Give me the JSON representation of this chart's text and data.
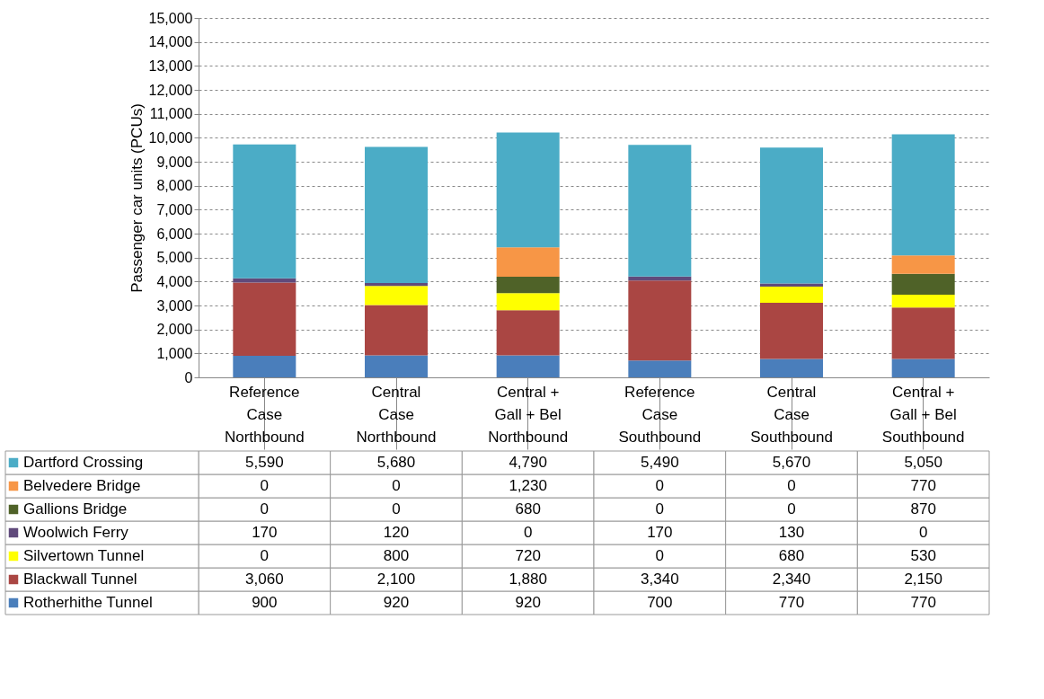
{
  "chart_data": {
    "type": "bar",
    "stacked": true,
    "ylabel": "Passenger car units (PCUs)",
    "categories": [
      "Reference Case Northbound",
      "Central Case Northbound",
      "Central + Gall + Bel Northbound",
      "Reference Case Southbound",
      "Central Case Southbound",
      "Central + Gall + Bel Southbound"
    ],
    "series": [
      {
        "name": "Rotherhithe Tunnel",
        "color": "#4a7ebb",
        "values": [
          900,
          920,
          920,
          700,
          770,
          770
        ],
        "value_labels": [
          "900",
          "920",
          "920",
          "700",
          "770",
          "770"
        ]
      },
      {
        "name": "Blackwall Tunnel",
        "color": "#aa4643",
        "values": [
          3060,
          2100,
          1880,
          3340,
          2340,
          2150
        ],
        "value_labels": [
          "3,060",
          "2,100",
          "1,880",
          "3,340",
          "2,340",
          "2,150"
        ]
      },
      {
        "name": "Silvertown Tunnel",
        "color": "#ffff00",
        "values": [
          0,
          800,
          720,
          0,
          680,
          530
        ],
        "value_labels": [
          "0",
          "800",
          "720",
          "0",
          "680",
          "530"
        ]
      },
      {
        "name": "Woolwich Ferry",
        "color": "#604a7b",
        "values": [
          170,
          120,
          0,
          170,
          130,
          0
        ],
        "value_labels": [
          "170",
          "120",
          "0",
          "170",
          "130",
          "0"
        ]
      },
      {
        "name": "Gallions Bridge",
        "color": "#4f6228",
        "values": [
          0,
          0,
          680,
          0,
          0,
          870
        ],
        "value_labels": [
          "0",
          "0",
          "680",
          "0",
          "0",
          "870"
        ]
      },
      {
        "name": "Belvedere Bridge",
        "color": "#f79646",
        "values": [
          0,
          0,
          1230,
          0,
          0,
          770
        ],
        "value_labels": [
          "0",
          "0",
          "1,230",
          "0",
          "0",
          "770"
        ]
      },
      {
        "name": "Dartford Crossing",
        "color": "#4bacc6",
        "values": [
          5590,
          5680,
          4790,
          5490,
          5670,
          5050
        ],
        "value_labels": [
          "5,590",
          "5,680",
          "4,790",
          "5,490",
          "5,670",
          "5,050"
        ]
      }
    ],
    "ylim": [
      0,
      15000
    ],
    "yticks": [
      0,
      {
        "value": 1000,
        "label": "1,000"
      },
      {
        "value": 2000,
        "label": "2,000"
      },
      {
        "value": 3000,
        "label": "3,000"
      },
      {
        "value": 4000,
        "label": "4,000"
      },
      {
        "value": 5000,
        "label": "5,000"
      },
      {
        "value": 6000,
        "label": "6,000"
      },
      {
        "value": 7000,
        "label": "7,000"
      },
      {
        "value": 8000,
        "label": "8,000"
      },
      {
        "value": 9000,
        "label": "9,000"
      },
      {
        "value": 10000,
        "label": "10,000"
      },
      {
        "value": 11000,
        "label": "11,000"
      },
      {
        "value": 12000,
        "label": "12,000"
      },
      {
        "value": 13000,
        "label": "13,000"
      },
      {
        "value": 14000,
        "label": "14,000"
      },
      {
        "value": 15000,
        "label": "15,000"
      }
    ],
    "grid": "y",
    "legend": "bottom"
  }
}
